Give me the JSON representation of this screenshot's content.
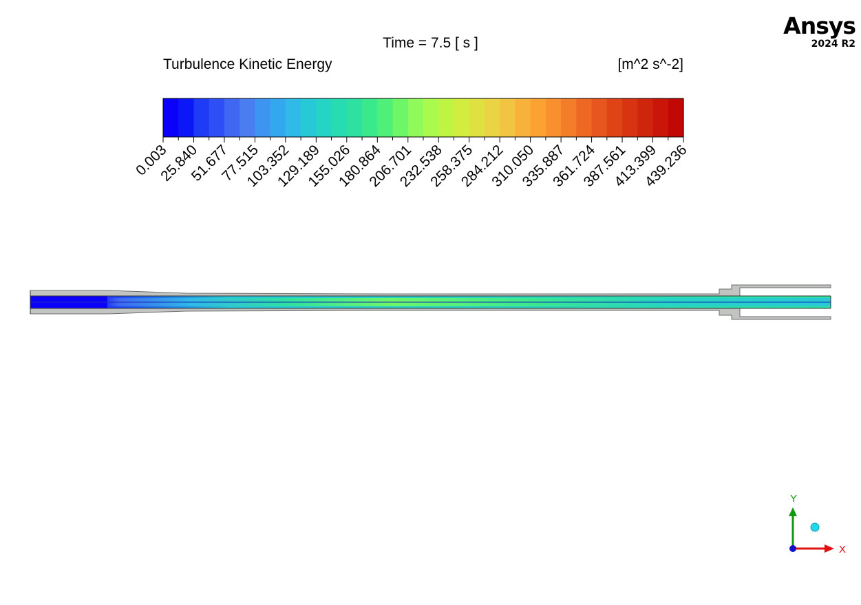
{
  "header": {
    "time_label": "Time = 7.5 [ s ]",
    "variable": "Turbulence Kinetic Energy",
    "units": "[m^2 s^-2]"
  },
  "logo": {
    "name": "Ansys",
    "version": "2024 R2"
  },
  "legend": {
    "ticks": [
      "0.003",
      "25.840",
      "51.677",
      "77.515",
      "103.352",
      "129.189",
      "155.026",
      "180.864",
      "206.701",
      "232.538",
      "258.375",
      "284.212",
      "310.050",
      "335.887",
      "361.724",
      "387.561",
      "413.399",
      "439.236"
    ],
    "colors": [
      "#0b00fa",
      "#0c17f8",
      "#1e3cf6",
      "#2d4ff5",
      "#3f67f2",
      "#4a7ef0",
      "#3d95f1",
      "#34a8ef",
      "#2fbae8",
      "#27c9d7",
      "#25d4c4",
      "#27dcb1",
      "#2ee1a0",
      "#3be98d",
      "#4ff07a",
      "#6ef669",
      "#8ffa5a",
      "#a9fa4d",
      "#bff542",
      "#d2ec3f",
      "#dfe140",
      "#ead444",
      "#f1c442",
      "#f8b23b",
      "#fba233",
      "#f7902d",
      "#f47d29",
      "#ee6823",
      "#e7561c",
      "#df4416",
      "#d83412",
      "#d0250d",
      "#c91609",
      "#c10804"
    ]
  },
  "axes": {
    "y_label": "Y",
    "x_label": "X"
  }
}
